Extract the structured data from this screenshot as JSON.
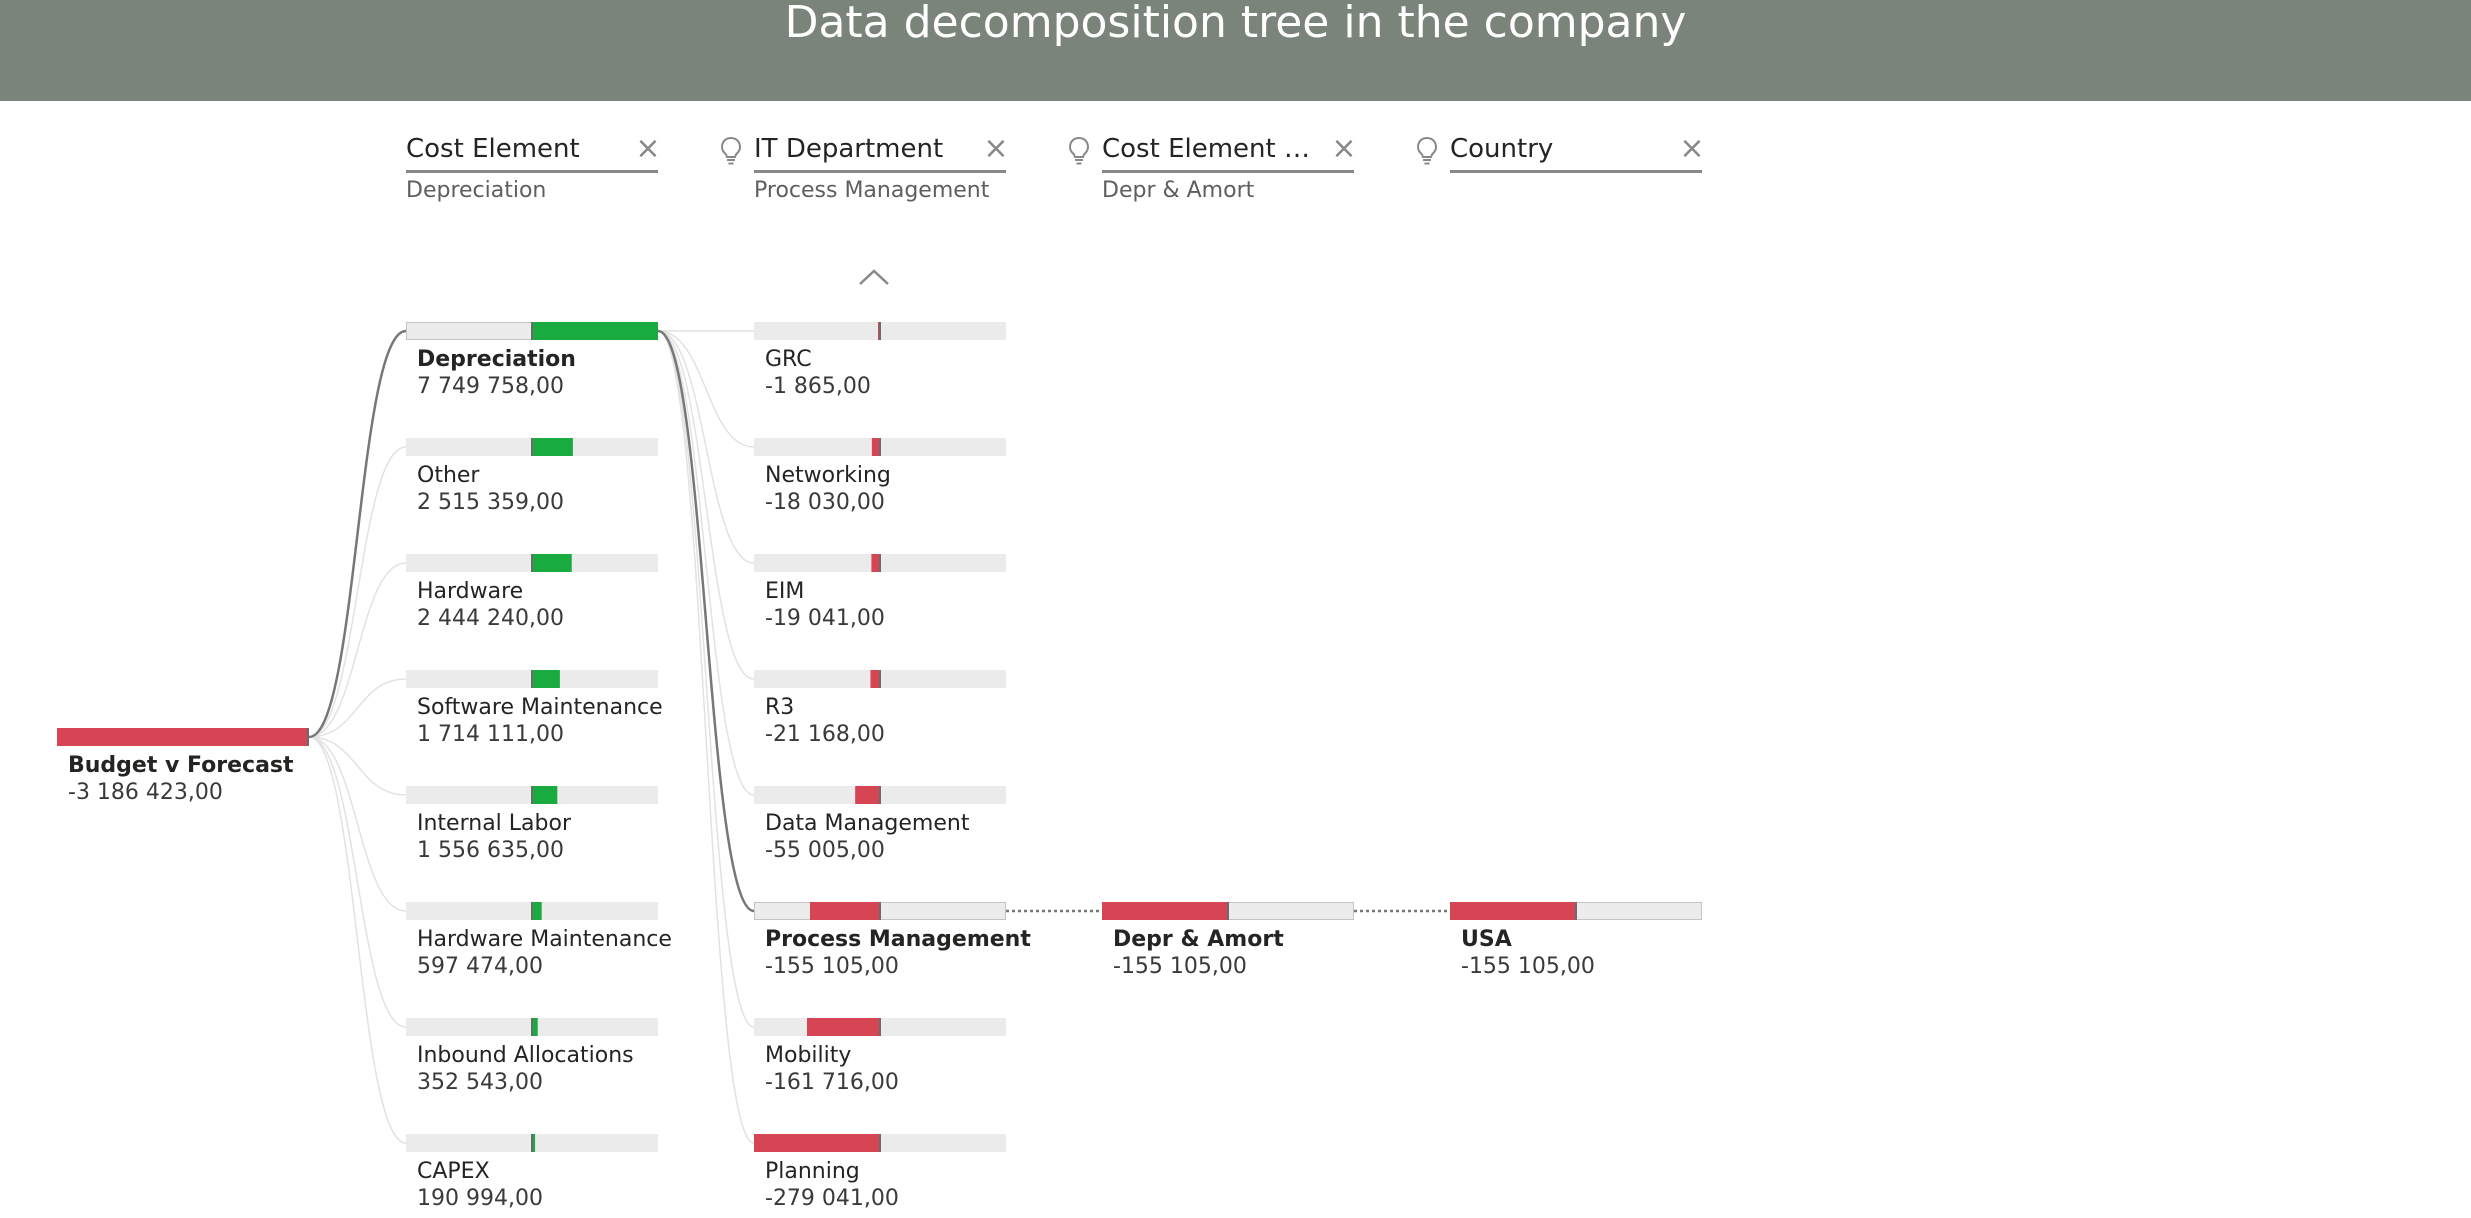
{
  "header": {
    "title": "Data decomposition tree in the company"
  },
  "colors": {
    "header_bg": "#7b847b",
    "positive": "#1aab40",
    "negative": "#d64554",
    "track": "#ebebeb",
    "connector_selected": "#777777",
    "connector": "#e2e2e2"
  },
  "levels": [
    {
      "title": "Cost Element",
      "value": "Depreciation",
      "icon": "close-icon"
    },
    {
      "title": "IT Department",
      "value": "Process Management",
      "icon": "lightbulb-icon"
    },
    {
      "title": "Cost Element Gr...",
      "value": "Depr & Amort",
      "icon": "lightbulb-icon"
    },
    {
      "title": "Country",
      "value": "",
      "icon": "lightbulb-icon"
    }
  ],
  "root": {
    "label": "Budget v Forecast",
    "value": "-3 186 423,00",
    "fraction": -1
  },
  "cost_elements": [
    {
      "label": "Depreciation",
      "value": "7 749 758,00",
      "fraction": 1.0,
      "selected": true
    },
    {
      "label": "Other",
      "value": "2 515 359,00",
      "fraction": 0.3246
    },
    {
      "label": "Hardware",
      "value": "2 444 240,00",
      "fraction": 0.3154
    },
    {
      "label": "Software Maintenance",
      "value": "1 714 111,00",
      "fraction": 0.2212
    },
    {
      "label": "Internal Labor",
      "value": "1 556 635,00",
      "fraction": 0.2009
    },
    {
      "label": "Hardware Maintenance",
      "value": "597 474,00",
      "fraction": 0.0771
    },
    {
      "label": "Inbound Allocations",
      "value": "352 543,00",
      "fraction": 0.0455
    },
    {
      "label": "CAPEX",
      "value": "190 994,00",
      "fraction": 0.0246
    }
  ],
  "it_departments": [
    {
      "label": "GRC",
      "value": "-1 865,00",
      "fraction": -0.0067
    },
    {
      "label": "Networking",
      "value": "-18 030,00",
      "fraction": -0.0646
    },
    {
      "label": "EIM",
      "value": "-19 041,00",
      "fraction": -0.0682
    },
    {
      "label": "R3",
      "value": "-21 168,00",
      "fraction": -0.0759
    },
    {
      "label": "Data Management",
      "value": "-55 005,00",
      "fraction": -0.1971
    },
    {
      "label": "Process Management",
      "value": "-155 105,00",
      "fraction": -0.5558,
      "selected": true
    },
    {
      "label": "Mobility",
      "value": "-161 716,00",
      "fraction": -0.5795
    },
    {
      "label": "Planning",
      "value": "-279 041,00",
      "fraction": -1.0
    }
  ],
  "cost_element_groups": [
    {
      "label": "Depr & Amort",
      "value": "-155 105,00",
      "fraction": -1.0,
      "selected": true
    }
  ],
  "countries": [
    {
      "label": "USA",
      "value": "-155 105,00",
      "fraction": -1.0,
      "selected": true
    }
  ],
  "scroll_up": {
    "icon": "chevron-up-icon"
  }
}
